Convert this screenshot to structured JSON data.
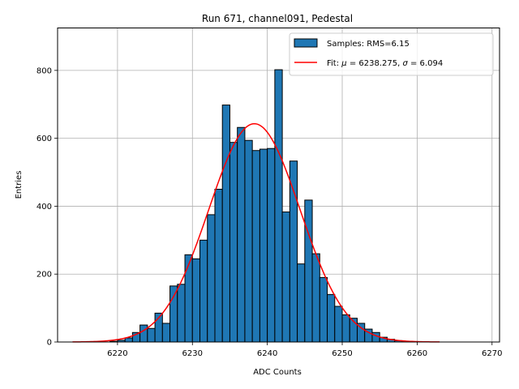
{
  "chart_data": {
    "type": "bar",
    "title": "Run 671, channel091, Pedestal",
    "xlabel": "ADC Counts",
    "ylabel": "Entries",
    "xlim": [
      6212,
      6271
    ],
    "ylim": [
      0,
      925
    ],
    "xticks": [
      6220,
      6230,
      6240,
      6250,
      6260,
      6270
    ],
    "yticks": [
      0,
      200,
      400,
      600,
      800
    ],
    "grid": true,
    "legend_position": "top-right",
    "bin_width": 1,
    "bins": [
      {
        "x": 6219,
        "value": 2
      },
      {
        "x": 6220,
        "value": 5
      },
      {
        "x": 6221,
        "value": 12
      },
      {
        "x": 6222,
        "value": 28
      },
      {
        "x": 6223,
        "value": 50
      },
      {
        "x": 6224,
        "value": 40
      },
      {
        "x": 6225,
        "value": 85
      },
      {
        "x": 6226,
        "value": 55
      },
      {
        "x": 6227,
        "value": 165
      },
      {
        "x": 6228,
        "value": 170
      },
      {
        "x": 6229,
        "value": 257
      },
      {
        "x": 6230,
        "value": 245
      },
      {
        "x": 6231,
        "value": 300
      },
      {
        "x": 6232,
        "value": 375
      },
      {
        "x": 6233,
        "value": 450
      },
      {
        "x": 6234,
        "value": 698
      },
      {
        "x": 6235,
        "value": 588
      },
      {
        "x": 6236,
        "value": 632
      },
      {
        "x": 6237,
        "value": 594
      },
      {
        "x": 6238,
        "value": 564
      },
      {
        "x": 6239,
        "value": 568
      },
      {
        "x": 6240,
        "value": 570
      },
      {
        "x": 6241,
        "value": 802
      },
      {
        "x": 6242,
        "value": 383
      },
      {
        "x": 6243,
        "value": 533
      },
      {
        "x": 6244,
        "value": 230
      },
      {
        "x": 6245,
        "value": 418
      },
      {
        "x": 6246,
        "value": 260
      },
      {
        "x": 6247,
        "value": 190
      },
      {
        "x": 6248,
        "value": 140
      },
      {
        "x": 6249,
        "value": 105
      },
      {
        "x": 6250,
        "value": 80
      },
      {
        "x": 6251,
        "value": 70
      },
      {
        "x": 6252,
        "value": 55
      },
      {
        "x": 6253,
        "value": 38
      },
      {
        "x": 6254,
        "value": 28
      },
      {
        "x": 6255,
        "value": 14
      },
      {
        "x": 6256,
        "value": 8
      },
      {
        "x": 6257,
        "value": 4
      },
      {
        "x": 6258,
        "value": 2
      },
      {
        "x": 6259,
        "value": 1
      }
    ],
    "fit": {
      "mu": 6238.275,
      "sigma": 6.094,
      "amplitude": 643,
      "x_range": [
        6214,
        6263
      ]
    },
    "series": [
      {
        "name": "Samples: RMS=6.15",
        "type": "histogram",
        "color": "#1f77b4"
      },
      {
        "name": "Fit:",
        "type": "line",
        "color": "#ff0000"
      }
    ],
    "legend": {
      "samples_label": "Samples: RMS=6.15",
      "fit_prefix": "Fit: ",
      "fit_mu_symbol": "μ",
      "fit_mu_text": " = 6238.275, ",
      "fit_sigma_symbol": "σ",
      "fit_sigma_text": " = 6.094"
    }
  }
}
